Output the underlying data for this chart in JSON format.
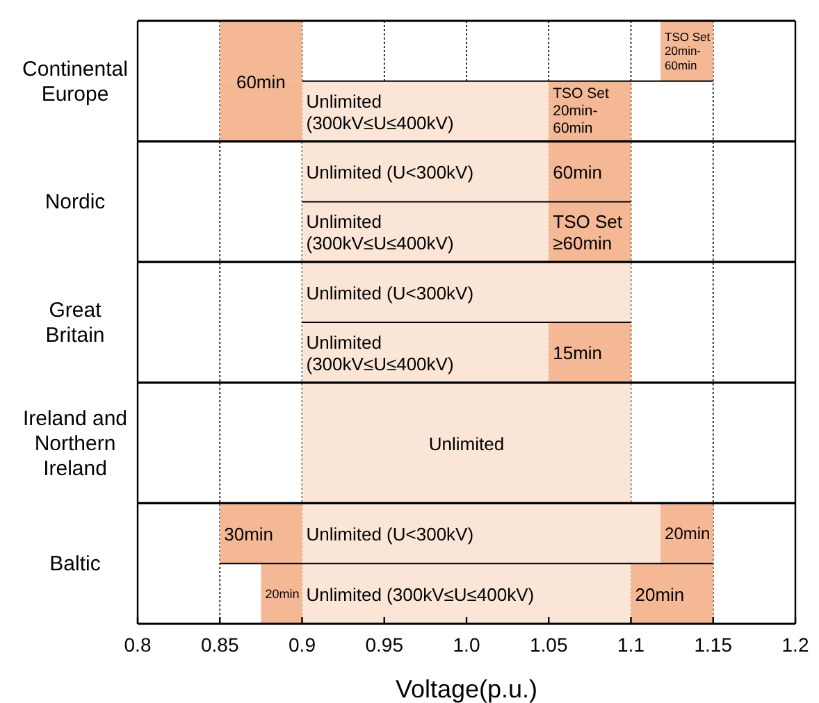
{
  "chart_data": {
    "type": "bar",
    "orientation": "horizontal",
    "xlabel": "Voltage(p.u.)",
    "categories": [
      "Continental Europe",
      null,
      "Nordic",
      null,
      "Great Britain",
      null,
      "Ireland and Northern Ireland",
      null,
      "Baltic",
      null
    ],
    "xlim": [
      0.8,
      1.2
    ],
    "xticks": [
      0.8,
      0.85,
      0.9,
      0.95,
      {
        "value": 1.0,
        "label": "1.0"
      },
      1.05,
      1.1,
      1.15,
      1.2
    ],
    "grid": true,
    "series": [
      {
        "name": "60min",
        "color": "#f4b994",
        "base": [
          0.85,
          0.85,
          1.05,
          null,
          null,
          null,
          null,
          null,
          null,
          null
        ],
        "values": [
          0.05,
          0.05,
          0.05,
          null,
          null,
          null,
          null,
          null,
          null,
          null
        ]
      },
      {
        "name": "30min",
        "color": "#f4b994",
        "base": [
          null,
          null,
          null,
          null,
          null,
          null,
          null,
          null,
          0.85,
          null
        ],
        "values": [
          null,
          null,
          null,
          null,
          null,
          null,
          null,
          null,
          0.05,
          null
        ]
      },
      {
        "name": "20min",
        "color": "#f4b994",
        "base": [
          null,
          null,
          null,
          null,
          null,
          null,
          null,
          null,
          1.118,
          1.1
        ],
        "values": [
          null,
          null,
          null,
          null,
          null,
          null,
          null,
          null,
          0.032,
          0.05
        ]
      },
      {
        "name": "20min",
        "color": "#f4b994",
        "base": [
          null,
          null,
          null,
          null,
          null,
          null,
          null,
          null,
          null,
          0.875
        ],
        "values": [
          null,
          null,
          null,
          null,
          null,
          null,
          null,
          null,
          null,
          0.025
        ]
      },
      {
        "name": "15min",
        "color": "#f4b994",
        "base": [
          null,
          null,
          null,
          null,
          null,
          1.05,
          null,
          null,
          null,
          null
        ],
        "values": [
          null,
          null,
          null,
          null,
          null,
          0.05,
          null,
          null,
          null,
          null
        ]
      },
      {
        "name": "TSO Set 20min-60min",
        "color": "#f4b994",
        "base": [
          1.118,
          1.05,
          null,
          null,
          null,
          null,
          null,
          null,
          null,
          null
        ],
        "values": [
          0.032,
          0.05,
          null,
          null,
          null,
          null,
          null,
          null,
          null,
          null
        ]
      },
      {
        "name": "TSO Set ≥60min",
        "color": "#f4b994",
        "base": [
          null,
          null,
          null,
          1.05,
          null,
          null,
          null,
          null,
          null,
          null
        ],
        "values": [
          null,
          null,
          null,
          0.05,
          null,
          null,
          null,
          null,
          null,
          null
        ]
      },
      {
        "name": "Unlimited (U<300kV)",
        "color": "#fbe5d6",
        "base": [
          null,
          null,
          0.9,
          null,
          0.9,
          null,
          null,
          null,
          0.9,
          null
        ],
        "values": [
          null,
          null,
          0.15,
          null,
          0.2,
          null,
          null,
          null,
          0.218,
          null
        ]
      },
      {
        "name": "Unlimited (300kV≤U≤400kV)",
        "color": "#fbe5d6",
        "base": [
          null,
          0.9,
          null,
          0.9,
          null,
          0.9,
          null,
          null,
          null,
          0.9
        ],
        "values": [
          null,
          0.15,
          null,
          0.15,
          null,
          0.15,
          null,
          null,
          null,
          0.2
        ]
      },
      {
        "name": "Unlimited",
        "color": "#fbe5d6",
        "base": [
          null,
          null,
          null,
          null,
          null,
          null,
          0.9,
          0.9,
          null,
          null
        ],
        "values": [
          null,
          null,
          null,
          null,
          null,
          null,
          0.2,
          0.2,
          null,
          null
        ]
      }
    ]
  }
}
